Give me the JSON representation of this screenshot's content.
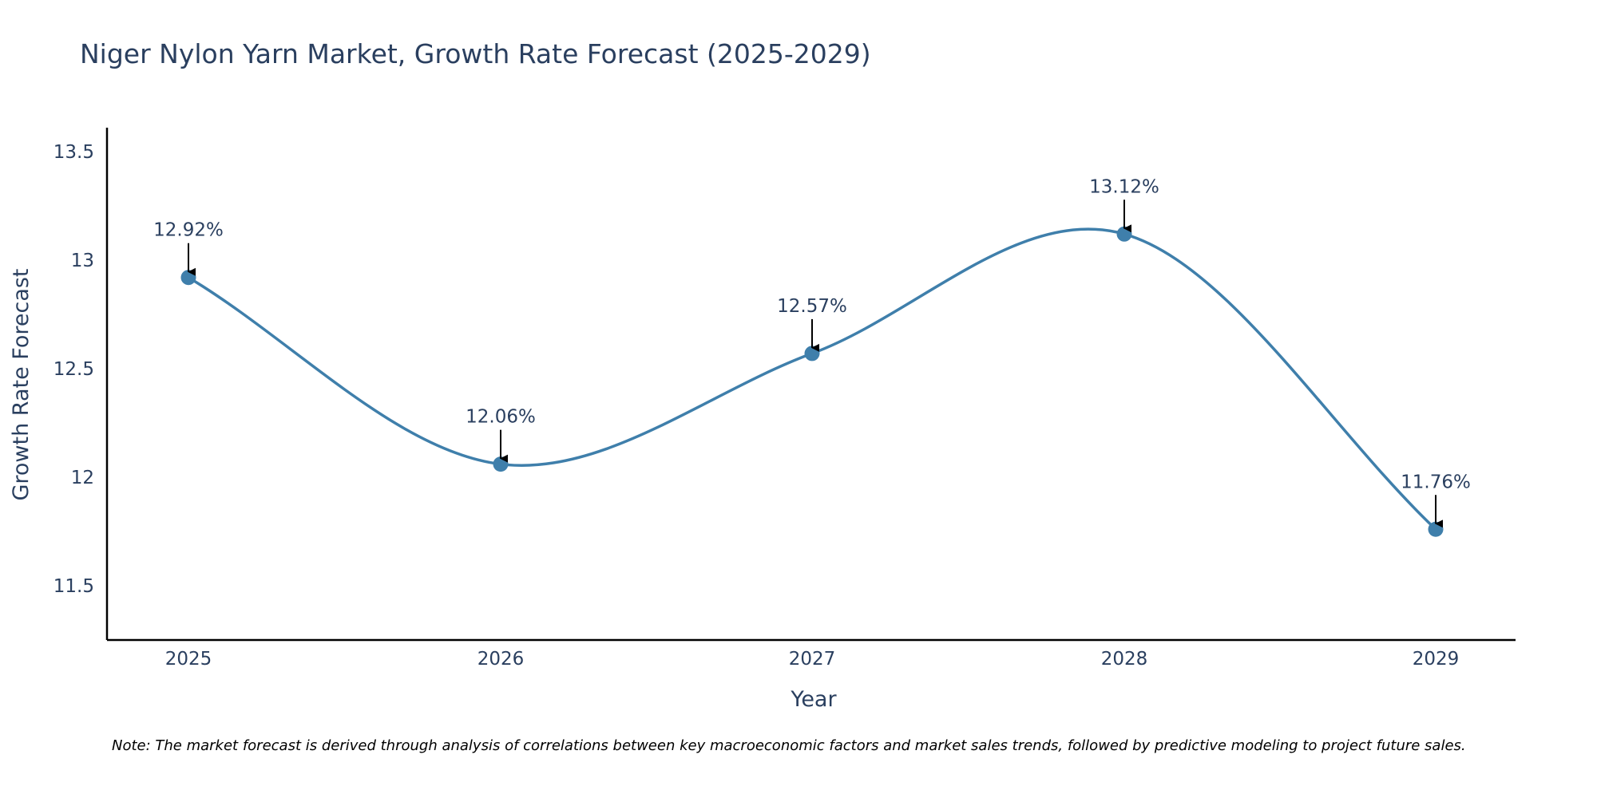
{
  "chart_data": {
    "type": "line",
    "title": "Niger Nylon Yarn Market, Growth Rate Forecast (2025-2029)",
    "xlabel": "Year",
    "ylabel": "Growth Rate Forecast",
    "categories": [
      "2025",
      "2026",
      "2027",
      "2028",
      "2029"
    ],
    "series": [
      {
        "name": "Growth Rate Forecast",
        "values": [
          12.92,
          12.06,
          12.57,
          13.12,
          11.76
        ],
        "color": "#3f7fab"
      }
    ],
    "data_labels": [
      "12.92%",
      "12.06%",
      "12.57%",
      "13.12%",
      "11.76%"
    ],
    "ylim": [
      11.25,
      13.61
    ],
    "y_ticks": [
      11.5,
      12,
      12.5,
      13,
      13.5
    ],
    "y_tick_labels": [
      "11.5",
      "12",
      "12.5",
      "13",
      "13.5"
    ],
    "grid": false,
    "note": "Note: The market forecast is derived through analysis of correlations between key macroeconomic factors and market sales trends, followed by predictive modeling to project future sales."
  }
}
